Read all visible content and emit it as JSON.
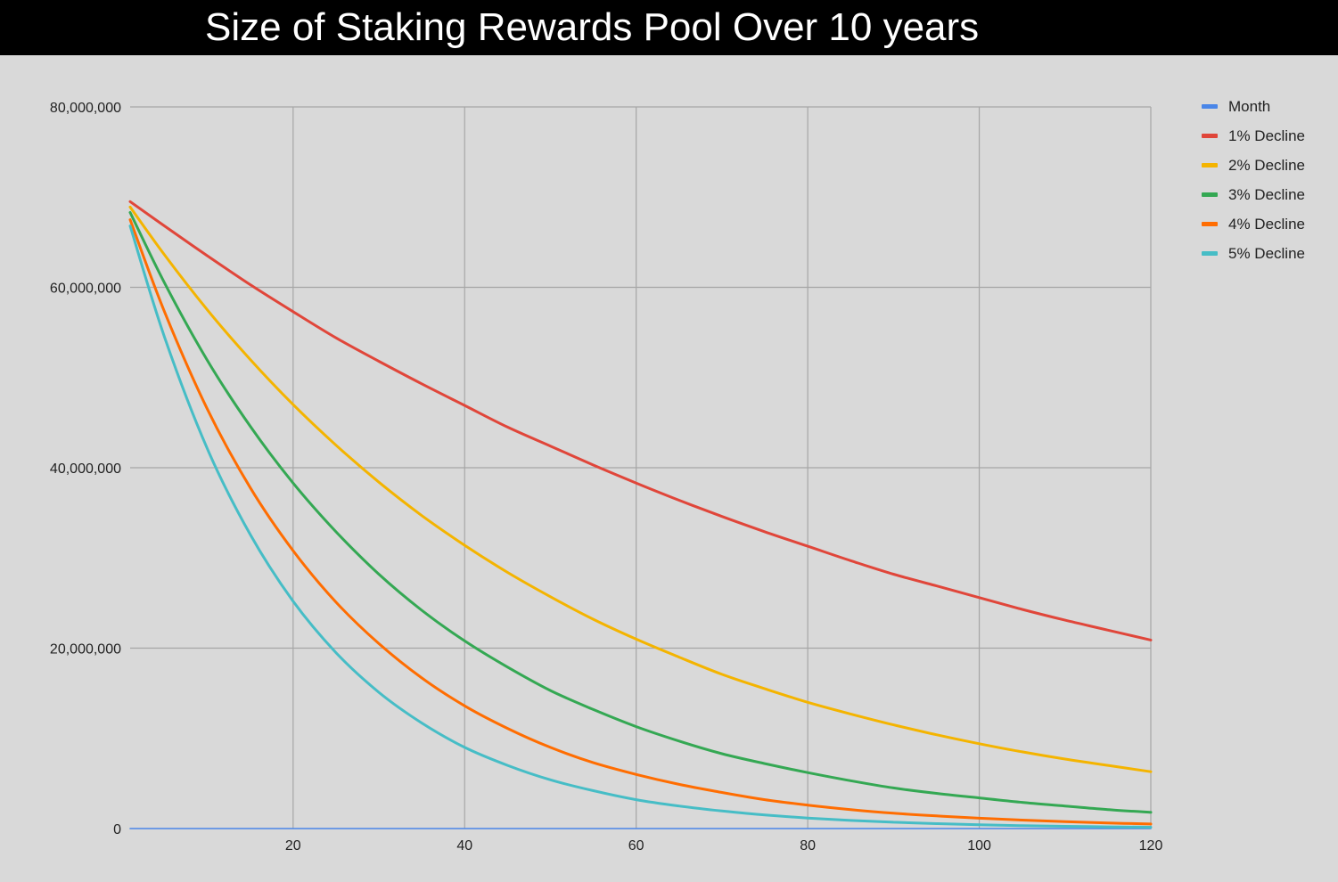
{
  "chart_data": {
    "type": "line",
    "title": "Size of Staking Rewards Pool Over 10 years",
    "xlabel": "",
    "ylabel": "",
    "xlim": [
      1,
      120
    ],
    "ylim": [
      0,
      80000000
    ],
    "x_ticks": [
      20,
      40,
      60,
      80,
      100,
      120
    ],
    "x_tick_labels": [
      "20",
      "40",
      "60",
      "80",
      "100",
      "120"
    ],
    "y_ticks": [
      0,
      20000000,
      40000000,
      60000000,
      80000000
    ],
    "y_tick_labels": [
      "0",
      "20,000,000",
      "40,000,000",
      "60,000,000",
      "80,000,000"
    ],
    "grid": true,
    "legend_position": "right",
    "x": [
      1,
      5,
      10,
      15,
      20,
      25,
      30,
      35,
      40,
      45,
      50,
      55,
      60,
      65,
      70,
      75,
      80,
      85,
      90,
      95,
      100,
      105,
      110,
      115,
      120
    ],
    "series": [
      {
        "name": "Month",
        "color": "#4a86e8",
        "values": [
          1,
          5,
          10,
          15,
          20,
          25,
          30,
          35,
          40,
          45,
          50,
          55,
          60,
          65,
          70,
          75,
          80,
          85,
          90,
          95,
          100,
          105,
          110,
          115,
          120
        ]
      },
      {
        "name": "1% Decline",
        "color": "#e0463a",
        "values": [
          69500000,
          66800000,
          63500000,
          60300000,
          57300000,
          54400000,
          51800000,
          49300000,
          46900000,
          44500000,
          42400000,
          40300000,
          38300000,
          36400000,
          34600000,
          32900000,
          31300000,
          29700000,
          28200000,
          26900000,
          25600000,
          24300000,
          23100000,
          22000000,
          20900000
        ]
      },
      {
        "name": "2% Decline",
        "color": "#f4b400",
        "values": [
          68900000,
          63600000,
          57500000,
          52000000,
          47000000,
          42500000,
          38400000,
          34700000,
          31400000,
          28400000,
          25700000,
          23200000,
          21000000,
          19000000,
          17100000,
          15500000,
          14000000,
          12700000,
          11500000,
          10400000,
          9400000,
          8500000,
          7700000,
          7000000,
          6300000
        ]
      },
      {
        "name": "3% Decline",
        "color": "#34a853",
        "values": [
          68300000,
          60500000,
          51900000,
          44600000,
          38300000,
          32900000,
          28200000,
          24200000,
          20800000,
          17900000,
          15300000,
          13200000,
          11300000,
          9700000,
          8300000,
          7200000,
          6200000,
          5300000,
          4500000,
          3900000,
          3400000,
          2900000,
          2500000,
          2100000,
          1800000
        ]
      },
      {
        "name": "4% Decline",
        "color": "#ff6d01",
        "values": [
          67500000,
          57300000,
          46500000,
          37800000,
          30800000,
          25100000,
          20500000,
          16700000,
          13600000,
          11100000,
          9000000,
          7300000,
          6000000,
          4900000,
          4000000,
          3200000,
          2600000,
          2100000,
          1700000,
          1400000,
          1150000,
          940000,
          760000,
          620000,
          500000
        ]
      },
      {
        "name": "5% Decline",
        "color": "#46bdc6",
        "values": [
          66800000,
          54500000,
          42100000,
          32600000,
          25200000,
          19500000,
          15100000,
          11700000,
          9000000,
          7000000,
          5400000,
          4200000,
          3200000,
          2500000,
          1950000,
          1500000,
          1160000,
          900000,
          700000,
          540000,
          420000,
          320000,
          250000,
          190000,
          150000
        ]
      }
    ]
  }
}
